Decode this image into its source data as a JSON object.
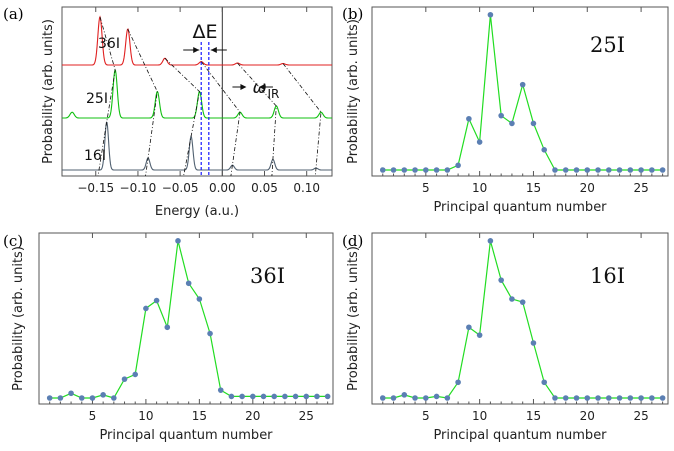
{
  "chart_data": [
    {
      "panel": "(a)",
      "type": "line",
      "xlabel": "Energy (a.u.)",
      "ylabel": "Probability (arb. units)",
      "xlim": [
        -0.19,
        0.13
      ],
      "xticks": [
        -0.15,
        -0.1,
        -0.05,
        0.0,
        0.05,
        0.1
      ],
      "xtick_labels": [
        "−0.15",
        "−0.10",
        "−0.05",
        "0.00",
        "0.05",
        "0.10"
      ],
      "series": [
        {
          "name": "36I",
          "color": "#e02020",
          "peaks": [
            {
              "x": -0.145,
              "h": 1.0
            },
            {
              "x": -0.112,
              "h": 0.75
            },
            {
              "x": -0.068,
              "h": 0.14
            },
            {
              "x": -0.025,
              "h": 0.07
            },
            {
              "x": 0.018,
              "h": 0.04
            },
            {
              "x": 0.072,
              "h": 0.03
            }
          ]
        },
        {
          "name": "25I",
          "color": "#10c010",
          "peaks": [
            {
              "x": -0.178,
              "h": 0.12
            },
            {
              "x": -0.127,
              "h": 1.0
            },
            {
              "x": -0.077,
              "h": 0.55
            },
            {
              "x": -0.027,
              "h": 0.55
            },
            {
              "x": 0.021,
              "h": 0.12
            },
            {
              "x": 0.064,
              "h": 0.25
            },
            {
              "x": 0.117,
              "h": 0.12
            }
          ]
        },
        {
          "name": "16I",
          "color": "#506070",
          "peaks": [
            {
              "x": -0.137,
              "h": 1.0
            },
            {
              "x": -0.088,
              "h": 0.25
            },
            {
              "x": -0.037,
              "h": 0.7
            },
            {
              "x": 0.012,
              "h": 0.1
            },
            {
              "x": 0.06,
              "h": 0.22
            },
            {
              "x": 0.111,
              "h": 0.04
            }
          ]
        }
      ],
      "annotations": [
        "ΔE",
        "ω",
        "IR"
      ]
    },
    {
      "panel": "(b)",
      "type": "line",
      "label": "25I",
      "xlabel": "Principal quantum number",
      "ylabel": "Probability (arb. units)",
      "xlim": [
        0,
        27.5
      ],
      "ylim": [
        0,
        1.05
      ],
      "xticks": [
        5,
        10,
        15,
        20,
        25
      ],
      "x": [
        1,
        2,
        3,
        4,
        5,
        6,
        7,
        8,
        9,
        10,
        11,
        12,
        13,
        14,
        15,
        16,
        17,
        18,
        19,
        20,
        21,
        22,
        23,
        24,
        25,
        26,
        27
      ],
      "values": [
        0,
        0,
        0,
        0,
        0,
        0,
        0,
        0.03,
        0.33,
        0.18,
        1.0,
        0.35,
        0.3,
        0.55,
        0.3,
        0.13,
        0,
        0,
        0,
        0,
        0,
        0,
        0,
        0,
        0,
        0,
        0
      ]
    },
    {
      "panel": "(c)",
      "type": "line",
      "label": "36I",
      "xlabel": "Principal quantum number",
      "ylabel": "Probability (arb. units)",
      "xlim": [
        0,
        27.5
      ],
      "ylim": [
        0,
        1.05
      ],
      "xticks": [
        5,
        10,
        15,
        20,
        25
      ],
      "x": [
        1,
        2,
        3,
        4,
        5,
        6,
        7,
        8,
        9,
        10,
        11,
        12,
        13,
        14,
        15,
        16,
        17,
        18,
        19,
        20,
        21,
        22,
        23,
        24,
        25,
        26,
        27
      ],
      "values": [
        0,
        0,
        0.03,
        0,
        0,
        0.02,
        0,
        0.12,
        0.15,
        0.57,
        0.62,
        0.45,
        1.0,
        0.73,
        0.63,
        0.41,
        0.05,
        0.01,
        0.01,
        0.01,
        0.01,
        0.01,
        0.01,
        0.01,
        0.01,
        0.01,
        0.01
      ]
    },
    {
      "panel": "(d)",
      "type": "line",
      "label": "16I",
      "xlabel": "Principal quantum number",
      "ylabel": "Probability (arb. units)",
      "xlim": [
        0,
        27.5
      ],
      "ylim": [
        0,
        1.05
      ],
      "xticks": [
        5,
        10,
        15,
        20,
        25
      ],
      "x": [
        1,
        2,
        3,
        4,
        5,
        6,
        7,
        8,
        9,
        10,
        11,
        12,
        13,
        14,
        15,
        16,
        17,
        18,
        19,
        20,
        21,
        22,
        23,
        24,
        25,
        26,
        27
      ],
      "values": [
        0,
        0,
        0.02,
        0,
        0,
        0.01,
        0,
        0.1,
        0.45,
        0.4,
        1.0,
        0.75,
        0.63,
        0.61,
        0.35,
        0.1,
        0,
        0,
        0,
        0,
        0,
        0,
        0,
        0,
        0,
        0,
        0
      ]
    }
  ],
  "colors": {
    "dist_line": "#22dd22",
    "dist_marker": "#5b7fb3",
    "axis": "#555555",
    "delta_lines": "#1a1aff"
  }
}
